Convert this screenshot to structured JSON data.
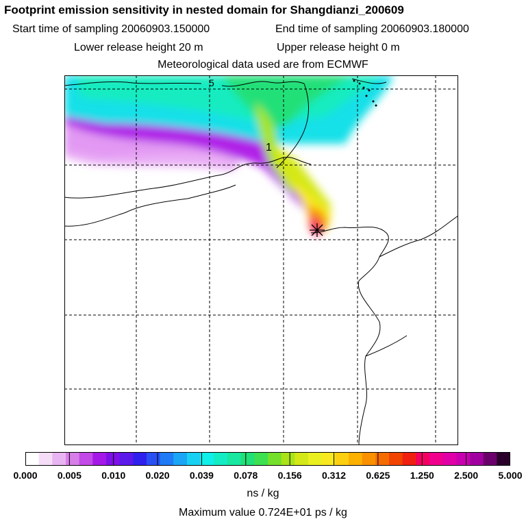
{
  "title": "Footprint emission sensitivity in nested domain for Shangdianzi_200609",
  "sampling": {
    "start": "Start time of sampling 20060903.150000",
    "end": "End time of sampling 20060903.180000"
  },
  "release": {
    "lower": "Lower release height   20 m",
    "upper": "Upper release height    0 m"
  },
  "met": "Meteorological data used are from ECMWF",
  "contour_labels": [
    "5",
    "1"
  ],
  "legend": {
    "ticks": [
      "0.000",
      "0.005",
      "0.010",
      "0.020",
      "0.039",
      "0.078",
      "0.156",
      "0.312",
      "0.625",
      "1.250",
      "2.500",
      "5.000"
    ],
    "unit": "ns / kg",
    "max_value": "Maximum value  0.724E+01 ps / kg",
    "colors": [
      "#ffffff",
      "#f5ddf8",
      "#e9b4f2",
      "#d87ee9",
      "#c34ae6",
      "#a419e8",
      "#7e10e8",
      "#5b19ea",
      "#3020ee",
      "#2950f2",
      "#1f7cf6",
      "#1aa6f5",
      "#18d1f2",
      "#10f0e8",
      "#14ecc4",
      "#18e8a0",
      "#20e078",
      "#3ce050",
      "#74e02c",
      "#a8e418",
      "#d4e818",
      "#eaf020",
      "#f8e820",
      "#fcd010",
      "#fcb000",
      "#f89000",
      "#f46c00",
      "#f04400",
      "#f02010",
      "#f40060",
      "#f0008c",
      "#e000a8",
      "#c800b0",
      "#a000a0",
      "#6a006a",
      "#2a002a"
    ]
  }
}
